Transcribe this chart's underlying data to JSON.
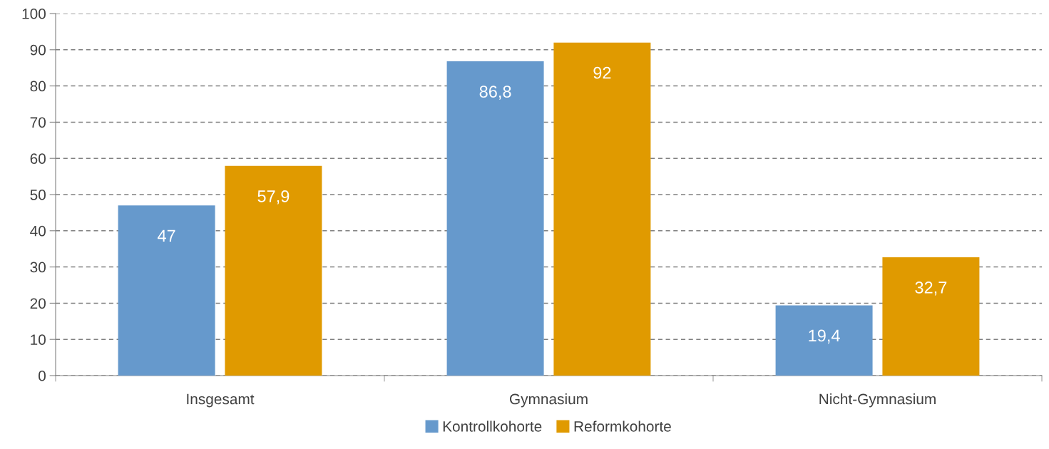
{
  "chart_data": {
    "type": "bar",
    "categories": [
      "Insgesamt",
      "Gymnasium",
      "Nicht-Gymnasium"
    ],
    "series": [
      {
        "name": "Kontrollkohorte",
        "color": "#6699cc",
        "values": [
          47,
          86.8,
          19.4
        ],
        "value_labels": [
          "47",
          "86,8",
          "19,4"
        ]
      },
      {
        "name": "Reformkohorte",
        "color": "#e09a00",
        "values": [
          57.9,
          92,
          32.7
        ],
        "value_labels": [
          "57,9",
          "92",
          "32,7"
        ]
      }
    ],
    "ylim": [
      0,
      100
    ],
    "yticks": [
      0,
      10,
      20,
      30,
      40,
      50,
      60,
      70,
      80,
      90,
      100
    ],
    "grid": "y",
    "legend": "bottom"
  }
}
